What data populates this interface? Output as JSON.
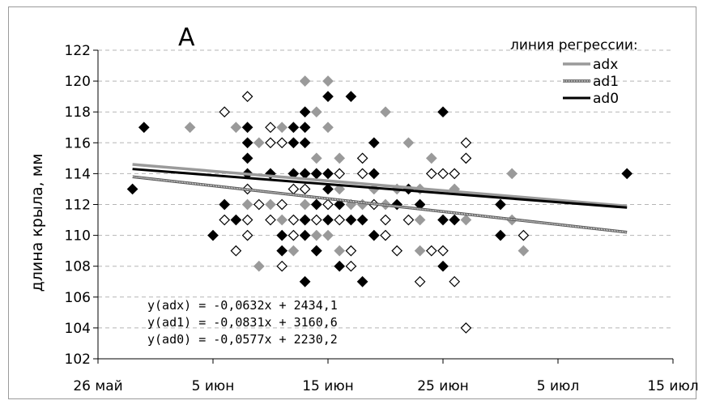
{
  "chart_data": {
    "type": "scatter",
    "panel_label": "A",
    "ylabel": "длина крыла, мм",
    "xlabel": "",
    "xlim": [
      "26 май",
      "15 июл"
    ],
    "ylim": [
      102,
      122
    ],
    "x_ticks": [
      "26 май",
      "5 июн",
      "15 июн",
      "25 июн",
      "5 июл",
      "15 июл"
    ],
    "y_ticks": [
      "102",
      "104",
      "106",
      "108",
      "110",
      "112",
      "114",
      "116",
      "118",
      "120",
      "122"
    ],
    "grid": "horizontal dashed",
    "legend_title": "линия регрессии:",
    "legend_position": "top-right",
    "series": [
      {
        "name": "adx",
        "color": "#999999",
        "marker": "diamond-filled-gray",
        "regression": {
          "label": "y(adx) = -0,0632x + 2434,1",
          "x0": 3,
          "y0": 114.6,
          "x1": 46,
          "y1": 111.9
        },
        "points": [
          [
            8,
            117
          ],
          [
            12,
            117
          ],
          [
            13,
            112
          ],
          [
            14,
            116
          ],
          [
            14,
            108
          ],
          [
            15,
            112
          ],
          [
            16,
            111
          ],
          [
            16,
            117
          ],
          [
            17,
            109
          ],
          [
            17,
            116
          ],
          [
            17,
            114
          ],
          [
            18,
            111
          ],
          [
            18,
            112
          ],
          [
            18,
            114
          ],
          [
            18,
            118
          ],
          [
            18,
            120
          ],
          [
            19,
            115
          ],
          [
            19,
            118
          ],
          [
            19,
            112
          ],
          [
            19,
            110
          ],
          [
            20,
            112
          ],
          [
            20,
            117
          ],
          [
            20,
            120
          ],
          [
            20,
            110
          ],
          [
            21,
            115
          ],
          [
            21,
            113
          ],
          [
            21,
            109
          ],
          [
            22,
            112
          ],
          [
            23,
            111
          ],
          [
            24,
            113
          ],
          [
            25,
            112
          ],
          [
            25,
            118
          ],
          [
            26,
            113
          ],
          [
            27,
            116
          ],
          [
            28,
            113
          ],
          [
            28,
            109
          ],
          [
            29,
            115
          ],
          [
            31,
            113
          ],
          [
            32,
            115
          ],
          [
            32,
            111
          ],
          [
            36,
            114
          ],
          [
            37,
            109
          ],
          [
            23,
            112
          ],
          [
            28,
            111
          ],
          [
            36,
            111
          ]
        ]
      },
      {
        "name": "ad1",
        "color": "#bbbbbb",
        "marker": "diamond-open",
        "regression": {
          "label": "y(ad1) = -0,0831x + 3160,6",
          "x0": 3,
          "y0": 113.8,
          "x1": 46,
          "y1": 110.2
        },
        "points": [
          [
            11,
            118
          ],
          [
            11,
            111
          ],
          [
            12,
            109
          ],
          [
            13,
            119
          ],
          [
            13,
            113
          ],
          [
            13,
            110
          ],
          [
            13,
            111
          ],
          [
            14,
            112
          ],
          [
            15,
            111
          ],
          [
            15,
            116
          ],
          [
            15,
            117
          ],
          [
            16,
            108
          ],
          [
            16,
            116
          ],
          [
            16,
            112
          ],
          [
            17,
            113
          ],
          [
            17,
            111
          ],
          [
            17,
            110
          ],
          [
            18,
            111
          ],
          [
            18,
            113
          ],
          [
            19,
            114
          ],
          [
            19,
            109
          ],
          [
            19,
            111
          ],
          [
            20,
            112
          ],
          [
            21,
            111
          ],
          [
            21,
            114
          ],
          [
            22,
            109
          ],
          [
            22,
            108
          ],
          [
            23,
            115
          ],
          [
            23,
            114
          ],
          [
            24,
            112
          ],
          [
            25,
            111
          ],
          [
            25,
            110
          ],
          [
            26,
            109
          ],
          [
            27,
            111
          ],
          [
            28,
            107
          ],
          [
            29,
            114
          ],
          [
            29,
            109
          ],
          [
            30,
            114
          ],
          [
            30,
            109
          ],
          [
            31,
            114
          ],
          [
            31,
            107
          ],
          [
            32,
            116
          ],
          [
            32,
            115
          ],
          [
            32,
            104
          ],
          [
            37,
            110
          ]
        ]
      },
      {
        "name": "ad0",
        "color": "#000000",
        "marker": "diamond-filled-black",
        "regression": {
          "label": "y(ad0) = -0,0577x + 2230,2",
          "x0": 3,
          "y0": 114.3,
          "x1": 46,
          "y1": 111.8
        },
        "points": [
          [
            3,
            113
          ],
          [
            4,
            117
          ],
          [
            10,
            110
          ],
          [
            11,
            112
          ],
          [
            12,
            111
          ],
          [
            13,
            117
          ],
          [
            13,
            116
          ],
          [
            13,
            115
          ],
          [
            13,
            114
          ],
          [
            15,
            114
          ],
          [
            16,
            109
          ],
          [
            16,
            110
          ],
          [
            17,
            114
          ],
          [
            17,
            116
          ],
          [
            17,
            117
          ],
          [
            18,
            114
          ],
          [
            18,
            116
          ],
          [
            18,
            107
          ],
          [
            18,
            110
          ],
          [
            18,
            111
          ],
          [
            18,
            117
          ],
          [
            18,
            118
          ],
          [
            19,
            112
          ],
          [
            19,
            114
          ],
          [
            19,
            109
          ],
          [
            20,
            119
          ],
          [
            20,
            114
          ],
          [
            20,
            113
          ],
          [
            20,
            111
          ],
          [
            21,
            112
          ],
          [
            21,
            108
          ],
          [
            22,
            119
          ],
          [
            22,
            111
          ],
          [
            23,
            107
          ],
          [
            23,
            111
          ],
          [
            24,
            114
          ],
          [
            24,
            116
          ],
          [
            24,
            110
          ],
          [
            26,
            112
          ],
          [
            27,
            113
          ],
          [
            28,
            112
          ],
          [
            30,
            118
          ],
          [
            30,
            111
          ],
          [
            30,
            108
          ],
          [
            31,
            111
          ],
          [
            35,
            112
          ],
          [
            35,
            110
          ],
          [
            46,
            114
          ]
        ]
      }
    ]
  }
}
